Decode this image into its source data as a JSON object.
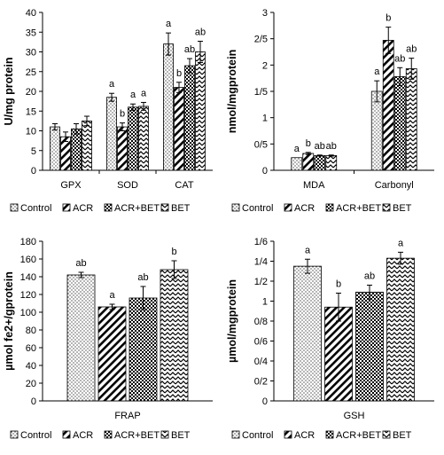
{
  "colors": {
    "axis": "#000000",
    "bar_outline": "#000000",
    "pattern": "#000000",
    "background": "#ffffff"
  },
  "legend": [
    "Control",
    "ACR",
    "ACR+BET",
    "BET"
  ],
  "legend_fills": [
    "dots",
    "diagonal",
    "checker",
    "zigzag"
  ],
  "chart_data": [
    {
      "type": "bar",
      "categories": [
        "GPX",
        "SOD",
        "CAT"
      ],
      "ylabel": "U/mg protein",
      "ylim": [
        0,
        40
      ],
      "yticks": [
        "0",
        "5",
        "10",
        "15",
        "20",
        "25",
        "30",
        "35",
        "40"
      ],
      "grid": false,
      "legend_position": "bottom",
      "series": [
        {
          "name": "Control",
          "fill": "dots",
          "values": [
            11.0,
            18.5,
            32.0
          ],
          "errors": [
            0.8,
            1.0,
            2.8
          ],
          "labels": [
            "",
            "a",
            "a"
          ]
        },
        {
          "name": "ACR",
          "fill": "diagonal",
          "values": [
            8.5,
            11.0,
            21.0
          ],
          "errors": [
            1.2,
            1.0,
            1.3
          ],
          "labels": [
            "",
            "b",
            "b"
          ]
        },
        {
          "name": "ACR+BET",
          "fill": "checker",
          "values": [
            10.5,
            16.0,
            26.5
          ],
          "errors": [
            1.3,
            0.8,
            1.8
          ],
          "labels": [
            "",
            "a",
            "ab"
          ]
        },
        {
          "name": "BET",
          "fill": "zigzag",
          "values": [
            12.5,
            16.2,
            30.0
          ],
          "errors": [
            1.2,
            1.0,
            2.7
          ],
          "labels": [
            "",
            "a",
            "ab"
          ]
        }
      ]
    },
    {
      "type": "bar",
      "categories": [
        "MDA",
        "Carbonyl"
      ],
      "ylabel": "nmol/mgprotein",
      "ylim": [
        0,
        3
      ],
      "yticks": [
        "0",
        "0/5",
        "1",
        "1/5",
        "2",
        "2/5",
        "3"
      ],
      "grid": false,
      "legend_position": "bottom",
      "series": [
        {
          "name": "Control",
          "fill": "dots",
          "values": [
            0.24,
            1.5
          ],
          "errors": [
            0.0,
            0.2
          ],
          "labels": [
            "a",
            "a"
          ]
        },
        {
          "name": "ACR",
          "fill": "diagonal",
          "values": [
            0.32,
            2.47
          ],
          "errors": [
            0.02,
            0.25
          ],
          "labels": [
            "b",
            "b"
          ]
        },
        {
          "name": "ACR+BET",
          "fill": "checker",
          "values": [
            0.28,
            1.78
          ],
          "errors": [
            0.01,
            0.17
          ],
          "labels": [
            "ab",
            "ab"
          ]
        },
        {
          "name": "BET",
          "fill": "zigzag",
          "values": [
            0.28,
            1.93
          ],
          "errors": [
            0.01,
            0.2
          ],
          "labels": [
            "ab",
            "ab"
          ]
        }
      ]
    },
    {
      "type": "bar",
      "categories": [
        "FRAP"
      ],
      "ylabel": "µmol fe2+/gprotein",
      "ylim": [
        0,
        180
      ],
      "yticks": [
        "0",
        "20",
        "40",
        "60",
        "80",
        "100",
        "120",
        "140",
        "160",
        "180"
      ],
      "grid": false,
      "legend_position": "bottom",
      "series": [
        {
          "name": "Control",
          "fill": "dots",
          "values": [
            142
          ],
          "errors": [
            3
          ],
          "labels": [
            "ab"
          ]
        },
        {
          "name": "ACR",
          "fill": "diagonal",
          "values": [
            106
          ],
          "errors": [
            3
          ],
          "labels": [
            "a"
          ]
        },
        {
          "name": "ACR+BET",
          "fill": "checker",
          "values": [
            116
          ],
          "errors": [
            13
          ],
          "labels": [
            "ab"
          ]
        },
        {
          "name": "BET",
          "fill": "zigzag",
          "values": [
            148
          ],
          "errors": [
            10
          ],
          "labels": [
            "b"
          ]
        }
      ]
    },
    {
      "type": "bar",
      "categories": [
        "GSH"
      ],
      "ylabel": "µmol/mgprotein",
      "ylim": [
        0,
        1.6
      ],
      "yticks": [
        "0",
        "0/2",
        "0/4",
        "0/6",
        "0/8",
        "1",
        "1/2",
        "1/4",
        "1/6"
      ],
      "grid": false,
      "legend_position": "bottom",
      "series": [
        {
          "name": "Control",
          "fill": "dots",
          "values": [
            1.35
          ],
          "errors": [
            0.07
          ],
          "labels": [
            "a"
          ]
        },
        {
          "name": "ACR",
          "fill": "diagonal",
          "values": [
            0.94
          ],
          "errors": [
            0.14
          ],
          "labels": [
            "b"
          ]
        },
        {
          "name": "ACR+BET",
          "fill": "checker",
          "values": [
            1.09
          ],
          "errors": [
            0.07
          ],
          "labels": [
            "ab"
          ]
        },
        {
          "name": "BET",
          "fill": "zigzag",
          "values": [
            1.43
          ],
          "errors": [
            0.06
          ],
          "labels": [
            "a"
          ]
        }
      ]
    }
  ]
}
